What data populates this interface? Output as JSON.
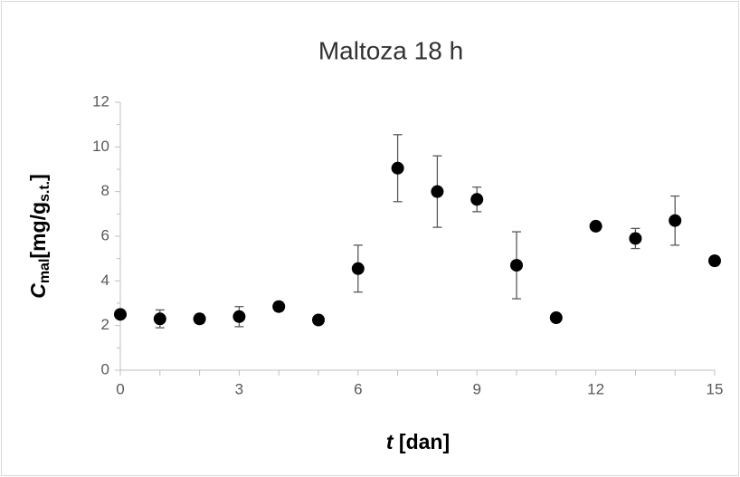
{
  "chart_data": {
    "type": "scatter",
    "title": "Maltoza 18 h",
    "xlabel": {
      "var": "t",
      "unit": " [dan]"
    },
    "ylabel": {
      "var": "C",
      "var_sub": "mal",
      "unit": "[mg/g",
      "unit_sub": "s.t.",
      "close": "]"
    },
    "series": [
      {
        "color": "#000000",
        "x": [
          0,
          1,
          2,
          3,
          4,
          5,
          6,
          7,
          8,
          9,
          10,
          11,
          12,
          13,
          14,
          15
        ],
        "values": [
          2.5,
          2.3,
          2.3,
          2.4,
          2.85,
          2.25,
          4.55,
          9.05,
          8.0,
          7.65,
          4.7,
          2.35,
          6.45,
          5.9,
          6.7,
          4.9
        ],
        "errors": [
          0.15,
          0.4,
          0.2,
          0.45,
          0.2,
          0.1,
          1.05,
          1.5,
          1.6,
          0.55,
          1.5,
          0.15,
          0.1,
          0.45,
          1.1,
          0.1
        ]
      }
    ],
    "xlim": [
      0,
      15
    ],
    "xticks": [
      0,
      3,
      6,
      9,
      12,
      15
    ],
    "xticks_minor": [
      1,
      2,
      4,
      5,
      7,
      8,
      10,
      11,
      13,
      14
    ],
    "ylim": [
      0,
      12
    ],
    "yticks": [
      0,
      2,
      4,
      6,
      8,
      10,
      12
    ],
    "yticks_minor": [
      1,
      3,
      5,
      7,
      9,
      11
    ],
    "grid": false
  }
}
